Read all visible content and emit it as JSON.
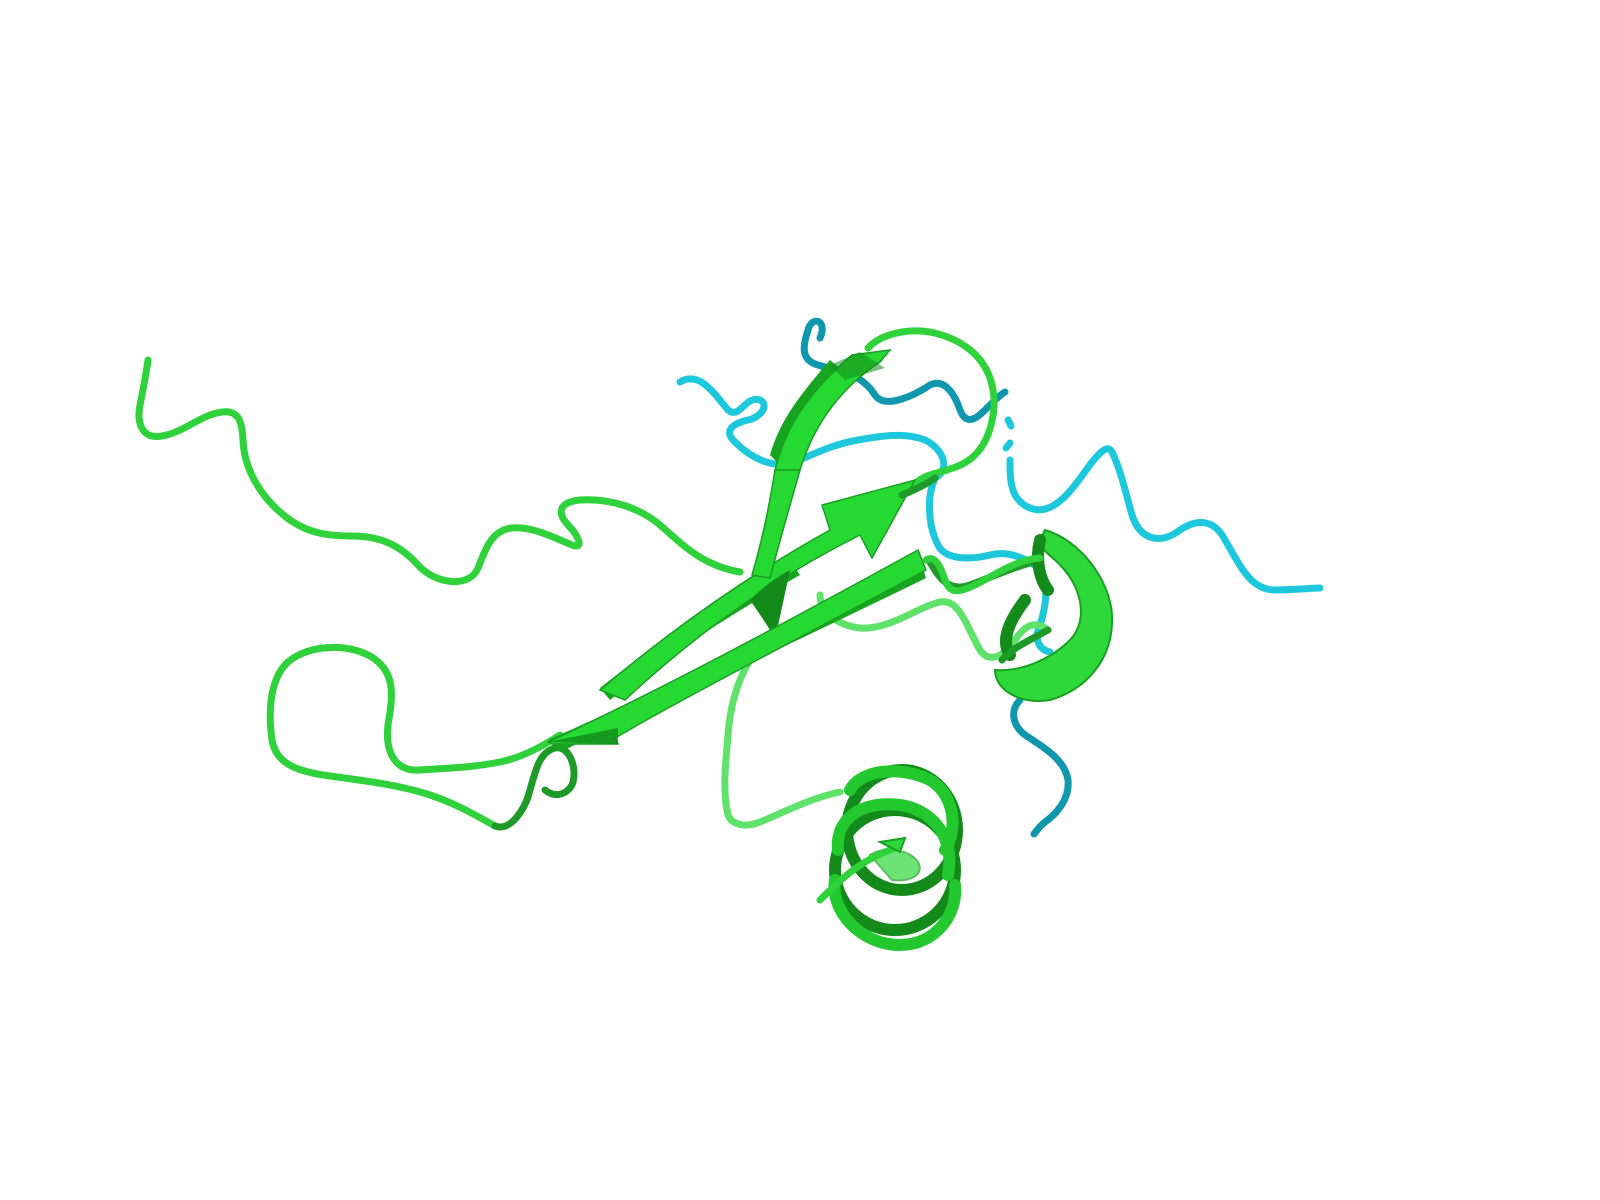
{
  "scene": {
    "subject": "protein-cartoon",
    "background_color": "#ffffff",
    "chain_a_color": "#2fd23a",
    "chain_b_color": "#1ec8dc",
    "elements": [
      "beta-strand",
      "beta-strand",
      "beta-strand",
      "alpha-helix",
      "alpha-helix",
      "loop",
      "loop"
    ]
  }
}
